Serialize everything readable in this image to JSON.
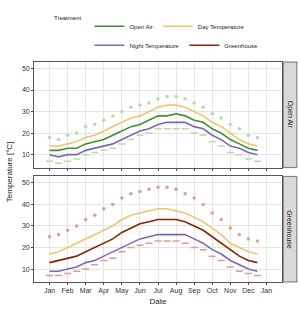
{
  "chart_data": {
    "type": "line",
    "x_label": "Date",
    "y_label": "Temperature [°C]",
    "legend_title": "Treatment",
    "legend": "top",
    "grid": true,
    "categories": [
      "Jan",
      null,
      "Feb",
      null,
      "Mar",
      null,
      "Apr",
      null,
      "May",
      null,
      "Jun",
      null,
      "Jul",
      null,
      "Aug",
      null,
      "Sep",
      null,
      "Oct",
      null,
      "Nov",
      null,
      "Dec",
      null,
      "Jan"
    ],
    "ylim": [
      4,
      53
    ],
    "yticks": [
      10,
      20,
      30,
      40,
      50
    ],
    "panels": [
      {
        "title": "Open Air",
        "series": [
          {
            "name": "Open Air",
            "color": "#b5dca8",
            "marker": "circle",
            "values": [
              18,
              17,
              19,
              20,
              23,
              24,
              26,
              28,
              30,
              32,
              33,
              34,
              36,
              37,
              37,
              36,
              34,
              32,
              29,
              27,
              24,
              22,
              19,
              18,
              null
            ]
          },
          {
            "name": "Open Air",
            "color": "#b5dca8",
            "marker": "dash",
            "values": [
              7,
              6,
              7,
              8,
              10,
              11,
              12,
              13,
              15,
              17,
              19,
              20,
              22,
              22,
              22,
              22,
              20,
              19,
              16,
              14,
              11,
              10,
              8,
              7,
              null
            ]
          },
          {
            "name": "Day Temperature",
            "color": "#f2c46d",
            "values": [
              14,
              14,
              15,
              16,
              18,
              19,
              21,
              23,
              25,
              27,
              28,
              30,
              32,
              33,
              33,
              32,
              30,
              28,
              25,
              23,
              20,
              17,
              15,
              14,
              null
            ]
          },
          {
            "name": "Night Temperature",
            "color": "#7b68b8",
            "values": [
              10,
              9,
              10,
              10,
              12,
              13,
              14,
              15,
              17,
              19,
              21,
              22,
              24,
              25,
              25,
              25,
              23,
              22,
              19,
              17,
              14,
              13,
              11,
              10,
              null
            ]
          },
          {
            "name": "Open Air",
            "color": "#3d8f2f",
            "values": [
              12,
              12,
              13,
              13,
              15,
              16,
              17,
              19,
              21,
              23,
              24,
              26,
              28,
              28,
              29,
              28,
              26,
              25,
              22,
              20,
              17,
              15,
              13,
              12,
              null
            ]
          }
        ]
      },
      {
        "title": "Greenhouse",
        "series": [
          {
            "name": "Greenhouse",
            "color": "#dca093",
            "marker": "circle",
            "values": [
              25,
              26,
              28,
              30,
              33,
              35,
              38,
              40,
              43,
              45,
              46,
              47,
              48,
              48,
              47,
              45,
              43,
              40,
              36,
              33,
              29,
              26,
              24,
              23,
              null
            ]
          },
          {
            "name": "Greenhouse",
            "color": "#dca093",
            "marker": "dash",
            "values": [
              7,
              7,
              8,
              9,
              10,
              12,
              14,
              15,
              18,
              20,
              21,
              22,
              23,
              23,
              23,
              22,
              20,
              19,
              16,
              14,
              11,
              9,
              8,
              7,
              null
            ]
          },
          {
            "name": "Day Temperature",
            "color": "#f2c46d",
            "values": [
              17,
              18,
              20,
              22,
              24,
              26,
              28,
              30,
              33,
              35,
              36,
              37,
              38,
              38,
              37,
              36,
              34,
              32,
              29,
              26,
              22,
              20,
              18,
              17,
              null
            ]
          },
          {
            "name": "Night Temperature",
            "color": "#7b68b8",
            "values": [
              9,
              9,
              10,
              11,
              13,
              14,
              16,
              18,
              20,
              22,
              24,
              25,
              26,
              26,
              26,
              26,
              24,
              22,
              19,
              17,
              14,
              12,
              10,
              9,
              null
            ]
          },
          {
            "name": "Greenhouse",
            "color": "#8b2500",
            "values": [
              13,
              14,
              15,
              16,
              18,
              20,
              22,
              24,
              27,
              29,
              31,
              32,
              33,
              33,
              33,
              32,
              30,
              28,
              25,
              22,
              19,
              16,
              14,
              13,
              null
            ]
          }
        ]
      }
    ]
  }
}
